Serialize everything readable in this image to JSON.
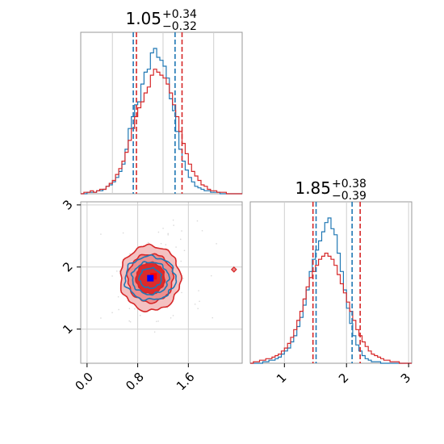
{
  "colors": {
    "red": "#d62728",
    "blue": "#1f77b4",
    "red_fill_outer": "#f4c1c1",
    "red_fill_mid": "#ec8f8f",
    "red_fill_inner": "#dc2b2b",
    "grid": "#cfcfcf",
    "marker_red": "#ff0000",
    "marker_blue": "#0000ff"
  },
  "chart_data": [
    {
      "panel": "marginal-x1",
      "type": "histogram-step",
      "title": {
        "median": "1.05",
        "plus": "+0.34",
        "minus": "−0.32"
      },
      "xlim": [
        -0.1,
        2.45
      ],
      "grid": true,
      "bin_start": -0.1,
      "bin_width": 0.05,
      "series": [
        {
          "name": "",
          "color": "#1f77b4",
          "counts": [
            0,
            0,
            1,
            1,
            1,
            2,
            2,
            3,
            5,
            6,
            8,
            11,
            15,
            20,
            30,
            44,
            52,
            60,
            62,
            74,
            82,
            84,
            95,
            98,
            92,
            90,
            86,
            78,
            64,
            56,
            42,
            30,
            22,
            16,
            11,
            8,
            5,
            4,
            3,
            2,
            2,
            1,
            1,
            1,
            0,
            0,
            0,
            0,
            0,
            0,
            0
          ],
          "quantiles": [
            0.73,
            1.39
          ]
        },
        {
          "name": "",
          "color": "#d62728",
          "counts": [
            0,
            1,
            1,
            2,
            1,
            2,
            3,
            3,
            5,
            7,
            9,
            13,
            17,
            22,
            28,
            36,
            44,
            52,
            58,
            62,
            68,
            72,
            80,
            84,
            82,
            80,
            78,
            74,
            68,
            60,
            52,
            42,
            34,
            27,
            20,
            15,
            12,
            9,
            6,
            5,
            3,
            2,
            2,
            1,
            1,
            1,
            0,
            0,
            0,
            0,
            0
          ],
          "quantiles": [
            0.78,
            1.5
          ]
        }
      ]
    },
    {
      "panel": "marginal-x2",
      "type": "histogram-step",
      "title": {
        "median": "1.85",
        "plus": "+0.38",
        "minus": "−0.39"
      },
      "xlim": [
        0.45,
        3.05
      ],
      "xticks": [
        "1",
        "2",
        "3"
      ],
      "xtick_values": [
        1,
        2,
        3
      ],
      "grid": true,
      "bin_start": 0.45,
      "bin_width": 0.05,
      "series": [
        {
          "name": "",
          "color": "#1f77b4",
          "counts": [
            0,
            0,
            0,
            0,
            1,
            1,
            2,
            2,
            3,
            4,
            6,
            8,
            10,
            14,
            18,
            24,
            30,
            38,
            48,
            60,
            68,
            74,
            80,
            86,
            92,
            95,
            88,
            84,
            72,
            60,
            48,
            36,
            26,
            18,
            12,
            8,
            5,
            3,
            2,
            1,
            1,
            1,
            0,
            0,
            0,
            0,
            0,
            0,
            0,
            0,
            0,
            0
          ],
          "quantiles": [
            1.51,
            2.09
          ]
        },
        {
          "name": "",
          "color": "#d62728",
          "counts": [
            0,
            1,
            1,
            2,
            2,
            3,
            3,
            4,
            5,
            6,
            8,
            10,
            13,
            17,
            22,
            28,
            34,
            42,
            50,
            56,
            60,
            64,
            68,
            70,
            72,
            70,
            68,
            64,
            58,
            52,
            46,
            40,
            34,
            28,
            22,
            18,
            14,
            11,
            8,
            6,
            5,
            4,
            3,
            2,
            2,
            1,
            1,
            1,
            0,
            0,
            0,
            0
          ],
          "quantiles": [
            1.46,
            2.22
          ]
        }
      ]
    },
    {
      "panel": "joint-x1-x2",
      "type": "contour",
      "xlim": [
        -0.1,
        2.45
      ],
      "ylim": [
        0.45,
        3.05
      ],
      "xticks": [
        "0.0",
        "0.8",
        "1.6"
      ],
      "xtick_values": [
        0.0,
        0.8,
        1.6
      ],
      "yticks": [
        "1",
        "2",
        "3"
      ],
      "ytick_values": [
        1,
        2,
        3
      ],
      "grid": true,
      "center": [
        1.0,
        1.82
      ],
      "series": [
        {
          "name": "",
          "color": "#d62728",
          "filled": true,
          "contours": [
            {
              "level": 3,
              "rx": 0.95,
              "ry": 1.05
            },
            {
              "level": 2,
              "rx": 0.72,
              "ry": 0.78
            },
            {
              "level": 1,
              "rx": 0.45,
              "ry": 0.5
            }
          ],
          "marker": [
            1.05,
            1.85
          ]
        },
        {
          "name": "",
          "color": "#1f77b4",
          "filled": false,
          "contours": [
            {
              "level": 2,
              "rx": 0.8,
              "ry": 0.7
            },
            {
              "level": 1,
              "rx": 0.58,
              "ry": 0.52
            },
            {
              "level": 0,
              "rx": 0.35,
              "ry": 0.32
            }
          ],
          "marker": [
            1.0,
            1.82
          ]
        }
      ]
    }
  ]
}
